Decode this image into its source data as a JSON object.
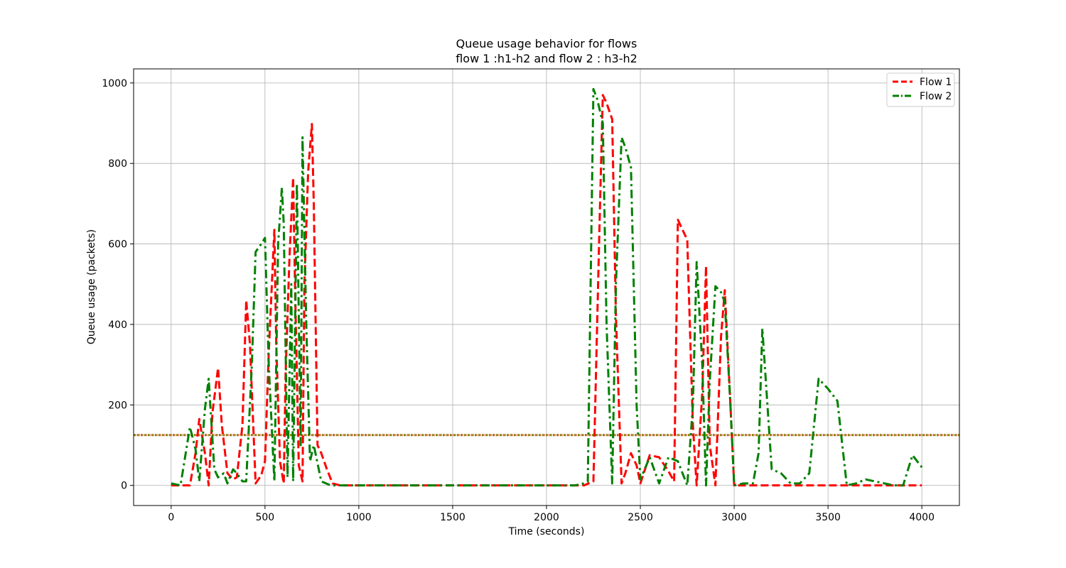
{
  "chart_data": {
    "type": "line",
    "title": "Queue usage behavior for flows",
    "subtitle": "flow 1 :h1-h2 and flow 2 : h3-h2",
    "xlabel": "Time (seconds)",
    "ylabel": "Queue usage (packets)",
    "xlim": [
      -200,
      4200
    ],
    "ylim": [
      -50,
      1035
    ],
    "xticks": [
      0,
      500,
      1000,
      1500,
      2000,
      2500,
      3000,
      3500,
      4000
    ],
    "yticks": [
      0,
      200,
      400,
      600,
      800,
      1000
    ],
    "grid": true,
    "legend_position": "top-right",
    "threshold": {
      "value": 125,
      "style": "dotted",
      "colors": [
        "#808000",
        "#cc3300"
      ]
    },
    "series": [
      {
        "name": "Flow 1",
        "color": "#ff0000",
        "style": "dashed",
        "x": [
          0,
          50,
          100,
          130,
          150,
          180,
          200,
          220,
          250,
          270,
          300,
          330,
          350,
          380,
          400,
          420,
          450,
          480,
          500,
          520,
          550,
          560,
          580,
          600,
          610,
          630,
          650,
          660,
          680,
          700,
          710,
          730,
          750,
          760,
          780,
          800,
          830,
          860,
          900,
          1000,
          1500,
          2000,
          2200,
          2250,
          2280,
          2300,
          2320,
          2350,
          2370,
          2400,
          2420,
          2450,
          2480,
          2500,
          2550,
          2600,
          2650,
          2680,
          2700,
          2750,
          2780,
          2800,
          2830,
          2850,
          2870,
          2900,
          2930,
          2950,
          2980,
          3000,
          3100,
          3500,
          4000
        ],
        "y": [
          0,
          0,
          0,
          80,
          165,
          80,
          0,
          180,
          292,
          150,
          30,
          15,
          20,
          150,
          460,
          350,
          5,
          25,
          60,
          330,
          635,
          350,
          60,
          5,
          280,
          560,
          765,
          500,
          50,
          10,
          500,
          780,
          898,
          700,
          100,
          80,
          40,
          5,
          0,
          0,
          0,
          0,
          0,
          10,
          600,
          970,
          950,
          910,
          420,
          5,
          30,
          80,
          50,
          5,
          75,
          70,
          35,
          10,
          660,
          610,
          150,
          0,
          230,
          545,
          100,
          0,
          370,
          485,
          200,
          0,
          0,
          0,
          0
        ]
      },
      {
        "name": "Flow 2",
        "color": "#008000",
        "style": "dashdot",
        "x": [
          0,
          50,
          100,
          130,
          150,
          180,
          200,
          230,
          250,
          280,
          300,
          330,
          350,
          380,
          400,
          430,
          450,
          480,
          500,
          520,
          550,
          570,
          590,
          600,
          620,
          640,
          650,
          670,
          690,
          700,
          720,
          740,
          760,
          800,
          850,
          900,
          1000,
          1500,
          2000,
          2150,
          2200,
          2220,
          2250,
          2270,
          2300,
          2320,
          2350,
          2370,
          2400,
          2420,
          2450,
          2480,
          2500,
          2550,
          2600,
          2650,
          2700,
          2750,
          2780,
          2800,
          2830,
          2850,
          2870,
          2900,
          2930,
          2950,
          2980,
          3000,
          3050,
          3100,
          3130,
          3150,
          3200,
          3250,
          3300,
          3350,
          3400,
          3450,
          3500,
          3550,
          3600,
          3650,
          3700,
          3750,
          3800,
          3850,
          3900,
          3950,
          4000
        ],
        "y": [
          5,
          0,
          145,
          90,
          10,
          190,
          265,
          40,
          20,
          30,
          5,
          40,
          30,
          10,
          10,
          300,
          580,
          600,
          615,
          300,
          10,
          600,
          740,
          650,
          20,
          500,
          10,
          750,
          100,
          865,
          400,
          60,
          100,
          10,
          0,
          0,
          0,
          0,
          0,
          0,
          5,
          10,
          985,
          960,
          900,
          400,
          5,
          500,
          865,
          840,
          790,
          200,
          15,
          70,
          5,
          70,
          60,
          0,
          200,
          555,
          300,
          0,
          260,
          495,
          480,
          455,
          200,
          0,
          5,
          5,
          80,
          390,
          40,
          30,
          5,
          5,
          30,
          265,
          240,
          210,
          0,
          5,
          15,
          10,
          5,
          0,
          0,
          75,
          45
        ]
      }
    ]
  }
}
